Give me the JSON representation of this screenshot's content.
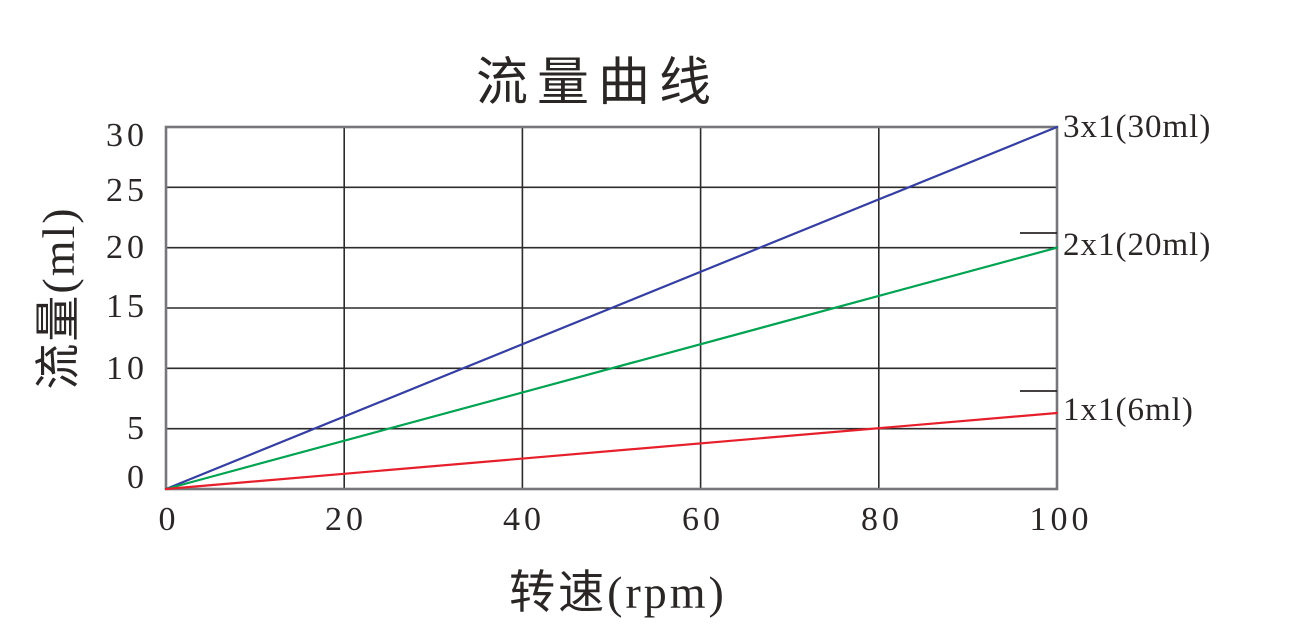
{
  "page": {
    "background": "#ffffff"
  },
  "chart_data": {
    "type": "line",
    "title": "流量曲线",
    "xlabel": "转速(rpm)",
    "ylabel": "流量(ml)",
    "xlim": [
      0,
      100
    ],
    "ylim": [
      0,
      30
    ],
    "xticks": [
      0,
      20,
      40,
      60,
      80,
      100
    ],
    "yticks": [
      0,
      5,
      10,
      15,
      20,
      25,
      30
    ],
    "grid": true,
    "legend_position": "right-edge-labels",
    "series": [
      {
        "name": "3x1(30ml)",
        "color": "#353ea2",
        "x": [
          0,
          100
        ],
        "y": [
          0,
          30
        ]
      },
      {
        "name": "2x1(20ml)",
        "color": "#00a351",
        "x": [
          0,
          100
        ],
        "y": [
          0,
          20
        ]
      },
      {
        "name": "1x1(6ml)",
        "color": "#e71f2b",
        "x": [
          0,
          100
        ],
        "y": [
          0,
          6.3
        ]
      }
    ],
    "colors": {
      "gridline": "#2d2a2b",
      "frame": "#76777b",
      "text": "#2b2626"
    }
  }
}
